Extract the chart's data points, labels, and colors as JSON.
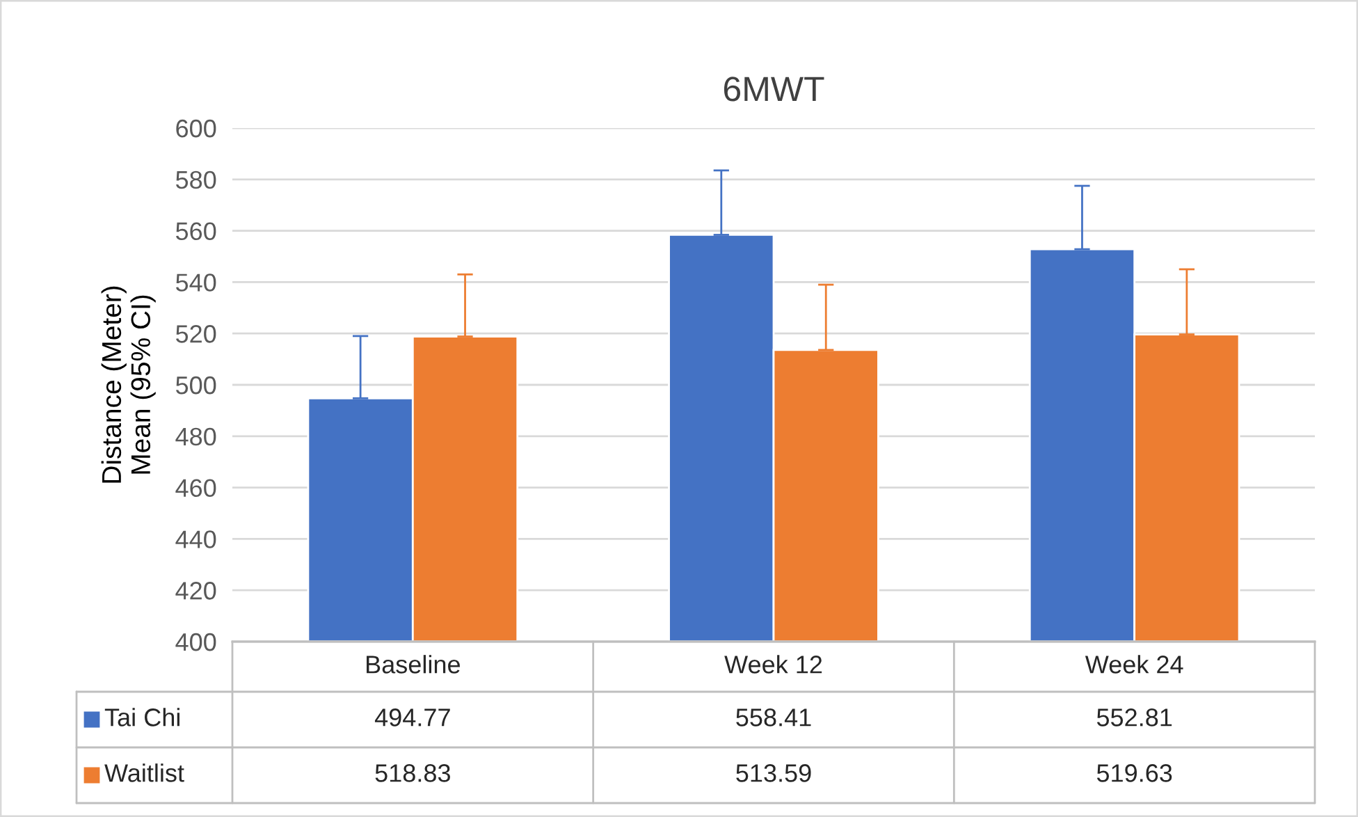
{
  "chart_data": {
    "type": "bar",
    "title": "6MWT",
    "ylabel": "Distance (Meter)\nMean (95% CI)",
    "categories": [
      "Baseline",
      "Week 12",
      "Week 24"
    ],
    "series": [
      {
        "name": "Tai Chi",
        "color": "#4472c4",
        "values": [
          494.77,
          558.41,
          552.81
        ],
        "errors": [
          [
            494.77,
            519
          ],
          [
            558.41,
            583.5
          ],
          [
            552.81,
            577.5
          ]
        ]
      },
      {
        "name": "Waitlist",
        "color": "#ed7d31",
        "values": [
          518.83,
          513.59,
          519.63
        ],
        "errors": [
          [
            518.83,
            543
          ],
          [
            513.59,
            539
          ],
          [
            519.63,
            545
          ]
        ]
      }
    ],
    "ylim": [
      400,
      600
    ],
    "yticks": [
      400,
      420,
      440,
      460,
      480,
      500,
      520,
      540,
      560,
      580,
      600
    ],
    "grid": "y",
    "legend": "bottom",
    "data_labels": true
  }
}
